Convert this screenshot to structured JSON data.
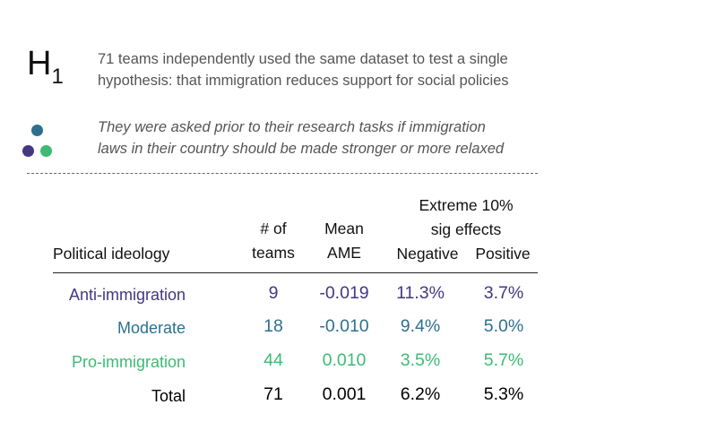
{
  "header": {
    "h_letter": "H",
    "h_subscript": "1",
    "intro_line1": "71 teams independently used the same dataset to test a single",
    "intro_line2": "hypothesis: that immigration reduces support for social policies",
    "question_line1": "They were asked prior to their research tasks if immigration",
    "question_line2": "laws in their country should be made stronger or more relaxed"
  },
  "colors": {
    "anti": "#453781",
    "moderate": "#2D708E",
    "pro": "#3CBB75",
    "total": "#000000"
  },
  "table": {
    "col_ideology": "Political ideology",
    "col_teams_line1": "# of",
    "col_teams_line2": "teams",
    "col_ame_line1": "Mean",
    "col_ame_line2": "AME",
    "group_line1": "Extreme 10%",
    "group_line2": "sig effects",
    "col_negative": "Negative",
    "col_positive": "Positive",
    "rows": [
      {
        "label": "Anti-immigration",
        "teams": "9",
        "ame": "-0.019",
        "negative": "11.3%",
        "positive": "3.7%"
      },
      {
        "label": "Moderate",
        "teams": "18",
        "ame": "-0.010",
        "negative": "9.4%",
        "positive": "5.0%"
      },
      {
        "label": "Pro-immigration",
        "teams": "44",
        "ame": "0.010",
        "negative": "3.5%",
        "positive": "5.7%"
      },
      {
        "label": "Total",
        "teams": "71",
        "ame": "0.001",
        "negative": "6.2%",
        "positive": "5.3%"
      }
    ]
  }
}
